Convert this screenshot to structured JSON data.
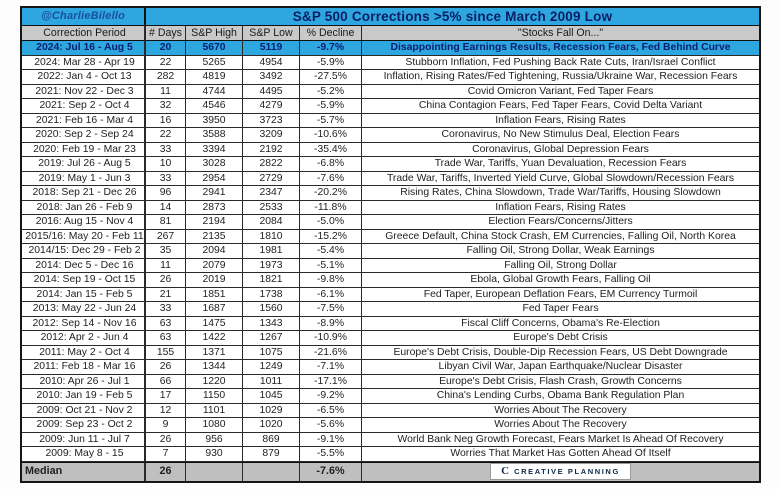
{
  "watermark": "@CharlieBilello",
  "chart_data": {
    "type": "table",
    "title": "S&P 500 Corrections >5% since March 2009 Low",
    "columns": [
      "Correction Period",
      "# Days",
      "S&P High",
      "S&P Low",
      "% Decline",
      "\"Stocks Fall On...\""
    ],
    "rows": [
      {
        "period": "2024: Jul 16 - Aug 5",
        "days": "20",
        "high": "5670",
        "low": "5119",
        "decline": "-9.7%",
        "reason": "Disappointing Earnings Results, Recession Fears, Fed Behind Curve",
        "highlight": true
      },
      {
        "period": "2024: Mar 28 - Apr 19",
        "days": "22",
        "high": "5265",
        "low": "4954",
        "decline": "-5.9%",
        "reason": "Stubborn Inflation, Fed Pushing Back Rate Cuts, Iran/Israel Conflict",
        "highlight": false
      },
      {
        "period": "2022: Jan 4 - Oct 13",
        "days": "282",
        "high": "4819",
        "low": "3492",
        "decline": "-27.5%",
        "reason": "Inflation, Rising Rates/Fed Tightening, Russia/Ukraine War, Recession Fears",
        "highlight": false
      },
      {
        "period": "2021: Nov 22 - Dec 3",
        "days": "11",
        "high": "4744",
        "low": "4495",
        "decline": "-5.2%",
        "reason": "Covid Omicron Variant, Fed Taper Fears",
        "highlight": false
      },
      {
        "period": "2021: Sep 2 - Oct 4",
        "days": "32",
        "high": "4546",
        "low": "4279",
        "decline": "-5.9%",
        "reason": "China Contagion Fears, Fed Taper Fears, Covid Delta Variant",
        "highlight": false
      },
      {
        "period": "2021: Feb 16 - Mar 4",
        "days": "16",
        "high": "3950",
        "low": "3723",
        "decline": "-5.7%",
        "reason": "Inflation Fears, Rising Rates",
        "highlight": false
      },
      {
        "period": "2020: Sep 2 - Sep 24",
        "days": "22",
        "high": "3588",
        "low": "3209",
        "decline": "-10.6%",
        "reason": "Coronavirus, No New Stimulus Deal, Election Fears",
        "highlight": false
      },
      {
        "period": "2020: Feb 19 - Mar 23",
        "days": "33",
        "high": "3394",
        "low": "2192",
        "decline": "-35.4%",
        "reason": "Coronavirus, Global Depression Fears",
        "highlight": false
      },
      {
        "period": "2019: Jul 26 - Aug 5",
        "days": "10",
        "high": "3028",
        "low": "2822",
        "decline": "-6.8%",
        "reason": "Trade War, Tariffs, Yuan Devaluation, Recession Fears",
        "highlight": false
      },
      {
        "period": "2019: May 1 - Jun 3",
        "days": "33",
        "high": "2954",
        "low": "2729",
        "decline": "-7.6%",
        "reason": "Trade War, Tariffs, Inverted Yield Curve, Global Slowdown/Recession Fears",
        "highlight": false
      },
      {
        "period": "2018: Sep 21 - Dec 26",
        "days": "96",
        "high": "2941",
        "low": "2347",
        "decline": "-20.2%",
        "reason": "Rising Rates, China Slowdown, Trade War/Tariffs, Housing Slowdown",
        "highlight": false
      },
      {
        "period": "2018: Jan 26 - Feb 9",
        "days": "14",
        "high": "2873",
        "low": "2533",
        "decline": "-11.8%",
        "reason": "Inflation Fears, Rising Rates",
        "highlight": false
      },
      {
        "period": "2016: Aug 15 - Nov 4",
        "days": "81",
        "high": "2194",
        "low": "2084",
        "decline": "-5.0%",
        "reason": "Election Fears/Concerns/Jitters",
        "highlight": false
      },
      {
        "period": "2015/16: May 20 - Feb 11",
        "days": "267",
        "high": "2135",
        "low": "1810",
        "decline": "-15.2%",
        "reason": "Greece Default, China Stock Crash, EM Currencies, Falling Oil, North Korea",
        "highlight": false
      },
      {
        "period": "2014/15: Dec 29 - Feb 2",
        "days": "35",
        "high": "2094",
        "low": "1981",
        "decline": "-5.4%",
        "reason": "Falling Oil, Strong Dollar, Weak Earnings",
        "highlight": false
      },
      {
        "period": "2014: Dec 5 - Dec 16",
        "days": "11",
        "high": "2079",
        "low": "1973",
        "decline": "-5.1%",
        "reason": "Falling Oil, Strong Dollar",
        "highlight": false
      },
      {
        "period": "2014: Sep 19 - Oct 15",
        "days": "26",
        "high": "2019",
        "low": "1821",
        "decline": "-9.8%",
        "reason": "Ebola, Global Growth Fears, Falling Oil",
        "highlight": false
      },
      {
        "period": "2014: Jan 15 - Feb 5",
        "days": "21",
        "high": "1851",
        "low": "1738",
        "decline": "-6.1%",
        "reason": "Fed Taper, European Deflation Fears, EM Currency Turmoil",
        "highlight": false
      },
      {
        "period": "2013: May 22 - Jun 24",
        "days": "33",
        "high": "1687",
        "low": "1560",
        "decline": "-7.5%",
        "reason": "Fed Taper Fears",
        "highlight": false
      },
      {
        "period": "2012: Sep 14 - Nov 16",
        "days": "63",
        "high": "1475",
        "low": "1343",
        "decline": "-8.9%",
        "reason": "Fiscal Cliff Concerns, Obama's Re-Election",
        "highlight": false
      },
      {
        "period": "2012: Apr 2 - Jun 4",
        "days": "63",
        "high": "1422",
        "low": "1267",
        "decline": "-10.9%",
        "reason": "Europe's Debt Crisis",
        "highlight": false
      },
      {
        "period": "2011: May 2 - Oct 4",
        "days": "155",
        "high": "1371",
        "low": "1075",
        "decline": "-21.6%",
        "reason": "Europe's Debt Crisis, Double-Dip Recession Fears, US Debt Downgrade",
        "highlight": false
      },
      {
        "period": "2011: Feb 18 - Mar 16",
        "days": "26",
        "high": "1344",
        "low": "1249",
        "decline": "-7.1%",
        "reason": "Libyan Civil War, Japan Earthquake/Nuclear Disaster",
        "highlight": false
      },
      {
        "period": "2010: Apr 26 - Jul 1",
        "days": "66",
        "high": "1220",
        "low": "1011",
        "decline": "-17.1%",
        "reason": "Europe's Debt Crisis, Flash Crash, Growth Concerns",
        "highlight": false
      },
      {
        "period": "2010: Jan 19 - Feb 5",
        "days": "17",
        "high": "1150",
        "low": "1045",
        "decline": "-9.2%",
        "reason": "China's Lending Curbs, Obama Bank Regulation Plan",
        "highlight": false
      },
      {
        "period": "2009: Oct 21 - Nov 2",
        "days": "12",
        "high": "1101",
        "low": "1029",
        "decline": "-6.5%",
        "reason": "Worries About The Recovery",
        "highlight": false
      },
      {
        "period": "2009: Sep 23 - Oct 2",
        "days": "9",
        "high": "1080",
        "low": "1020",
        "decline": "-5.6%",
        "reason": "Worries About The Recovery",
        "highlight": false
      },
      {
        "period": "2009: Jun 11 - Jul 7",
        "days": "26",
        "high": "956",
        "low": "869",
        "decline": "-9.1%",
        "reason": "World Bank Neg Growth Forecast, Fears Market Is Ahead Of Recovery",
        "highlight": false
      },
      {
        "period": "2009: May 8 - 15",
        "days": "7",
        "high": "930",
        "low": "879",
        "decline": "-5.5%",
        "reason": "Worries That Market Has Gotten Ahead Of Itself",
        "highlight": false
      }
    ],
    "median": {
      "label": "Median",
      "days": "26",
      "high": "",
      "low": "",
      "decline": "-7.6%"
    }
  },
  "footer": {
    "logo_icon": "C",
    "logo_text": "CREATIVE PLANNING"
  },
  "colors": {
    "accent_cyan": "#2ea7e0",
    "header_gray": "#c9c9c9",
    "median_gray": "#bfbfbf",
    "navy": "#0a1e63"
  }
}
